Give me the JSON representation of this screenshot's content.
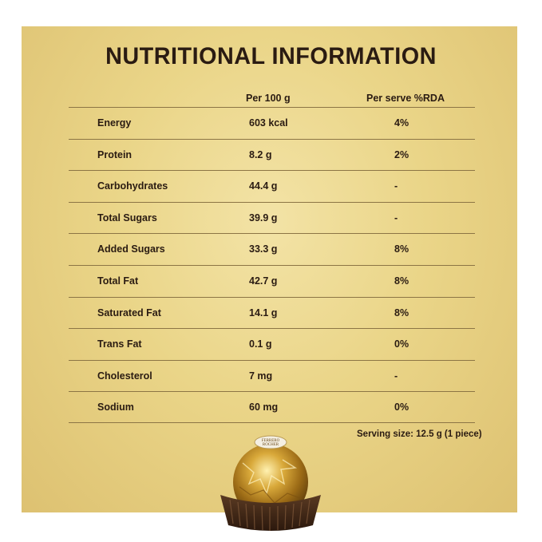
{
  "title": "NUTRITIONAL INFORMATION",
  "columns": {
    "per100": "Per 100 g",
    "rda": "Per serve %RDA"
  },
  "rows": [
    {
      "name": "Energy",
      "per100": "603 kcal",
      "rda": "4%"
    },
    {
      "name": "Protein",
      "per100": "8.2 g",
      "rda": "2%"
    },
    {
      "name": "Carbohydrates",
      "per100": "44.4 g",
      "rda": "-"
    },
    {
      "name": "Total Sugars",
      "per100": "39.9 g",
      "rda": "-"
    },
    {
      "name": "Added Sugars",
      "per100": "33.3 g",
      "rda": "8%"
    },
    {
      "name": "Total Fat",
      "per100": "42.7 g",
      "rda": "8%"
    },
    {
      "name": "Saturated Fat",
      "per100": "14.1 g",
      "rda": "8%"
    },
    {
      "name": "Trans Fat",
      "per100": "0.1 g",
      "rda": "0%"
    },
    {
      "name": "Cholesterol",
      "per100": "7 mg",
      "rda": "-"
    },
    {
      "name": "Sodium",
      "per100": "60 mg",
      "rda": "0%"
    }
  ],
  "serving_size": "Serving size: 12.5 g  (1 piece)",
  "product_image": {
    "label": "FERRERO ROCHER",
    "icon": "ferrero-rocher-chocolate"
  },
  "colors": {
    "background": "#ead588",
    "text": "#2a1b12",
    "rule": "#8c7545"
  }
}
